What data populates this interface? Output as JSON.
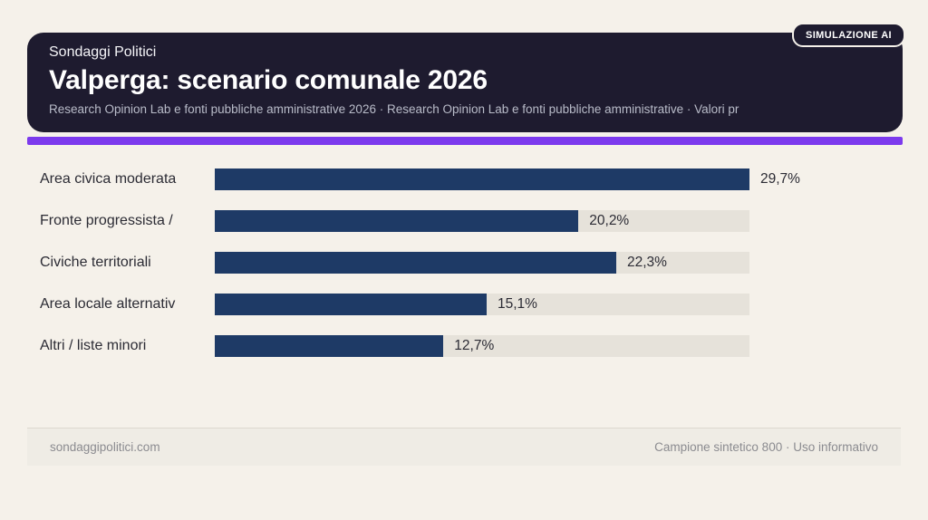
{
  "badge": {
    "label": "SIMULAZIONE AI"
  },
  "header": {
    "kicker": "Sondaggi Politici",
    "title": "Valperga: scenario comunale 2026",
    "subtitle": "Research Opinion Lab e fonti pubbliche amministrative 2026 · Research Opinion Lab e fonti pubbliche amministrative · Valori pr"
  },
  "chart_data": {
    "type": "bar",
    "orientation": "horizontal",
    "title": "Valperga: scenario comunale 2026",
    "categories": [
      "Area civica moderata",
      "Fronte progressista /",
      "Civiche territoriali",
      "Area locale alternativ",
      "Altri / liste minori"
    ],
    "values": [
      29.7,
      20.2,
      22.3,
      15.1,
      12.7
    ],
    "value_labels": [
      "29,7%",
      "20,2%",
      "22,3%",
      "15,1%",
      "12,7%"
    ],
    "unit": "%",
    "scale_max": 29.7,
    "bar_color": "#1e3a66",
    "track_color": "#e6e2da",
    "grid": false,
    "legend": false
  },
  "footer": {
    "left": "sondaggipolitici.com",
    "right": "Campione sintetico 800 · Uso informativo"
  },
  "colors": {
    "page_background": "#f5f1ea",
    "header_background": "#1e1b2f",
    "accent_purple": "#7c3aed",
    "bar_navy": "#1e3a66",
    "bar_track": "#e6e2da"
  }
}
